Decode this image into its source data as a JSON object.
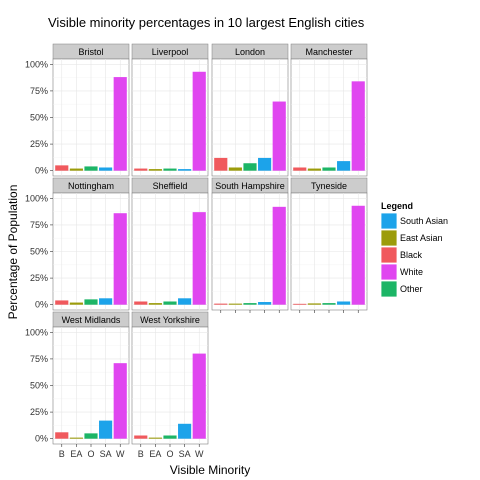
{
  "chart_data": {
    "type": "bar",
    "title": "Visible minority percentages in 10 largest English cities",
    "xlabel": "Visible Minority",
    "ylabel": "Percentage of  Population",
    "categories": [
      "B",
      "EA",
      "O",
      "SA",
      "W"
    ],
    "ylim": [
      0,
      100
    ],
    "yticks": [
      "0%",
      "25%",
      "50%",
      "75%",
      "100%"
    ],
    "yticks_values": [
      0,
      25,
      50,
      75,
      100
    ],
    "grid": true,
    "colors": {
      "B": "#f0595d",
      "EA": "#9c9c0a",
      "O": "#1cb566",
      "SA": "#1ca3ea",
      "W": "#e046f0"
    },
    "legend": {
      "title": "Legend",
      "position": "right",
      "items": [
        {
          "label": "South Asian",
          "key": "SA"
        },
        {
          "label": "East Asian",
          "key": "EA"
        },
        {
          "label": "Black",
          "key": "B"
        },
        {
          "label": "White",
          "key": "W"
        },
        {
          "label": "Other",
          "key": "O"
        }
      ]
    },
    "panels": [
      {
        "name": "Bristol",
        "values": [
          5,
          2,
          4,
          3,
          88
        ]
      },
      {
        "name": "Liverpool",
        "values": [
          2,
          1.5,
          2,
          1.5,
          93
        ]
      },
      {
        "name": "London",
        "values": [
          12,
          3,
          7,
          12,
          65
        ]
      },
      {
        "name": "Manchester",
        "values": [
          3,
          2,
          3,
          9,
          84
        ]
      },
      {
        "name": "Nottingham",
        "values": [
          4,
          2,
          5,
          6,
          86
        ]
      },
      {
        "name": "Sheffield",
        "values": [
          3,
          1.5,
          3,
          6,
          87
        ]
      },
      {
        "name": "South Hampshire",
        "values": [
          1,
          1,
          1.5,
          2.5,
          92
        ]
      },
      {
        "name": "Tyneside",
        "values": [
          0.8,
          1.2,
          1.5,
          3,
          93
        ]
      },
      {
        "name": "West Midlands",
        "values": [
          6,
          1,
          5,
          17,
          71
        ]
      },
      {
        "name": "West Yorkshire",
        "values": [
          3,
          1,
          3,
          14,
          80
        ]
      }
    ]
  }
}
